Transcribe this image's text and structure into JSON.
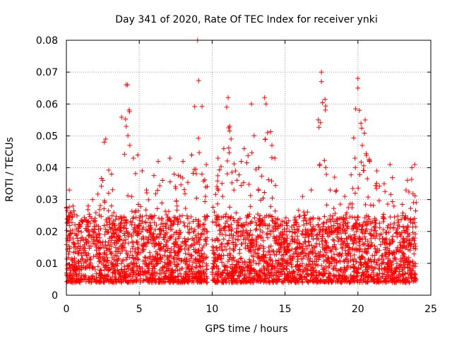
{
  "chart_data": {
    "type": "scatter",
    "title": "Day 341 of 2020, Rate Of TEC Index for receiver ynki",
    "xlabel": "GPS time / hours",
    "ylabel": "ROTI / TECUs",
    "xlim": [
      0,
      25
    ],
    "ylim": [
      0,
      0.08
    ],
    "x_ticks": [
      0,
      5,
      10,
      15,
      20,
      25
    ],
    "x_tick_labels": [
      "0",
      "5",
      "10",
      "15",
      "20",
      "25"
    ],
    "y_ticks": [
      0,
      0.01,
      0.02,
      0.03,
      0.04,
      0.05,
      0.06,
      0.07,
      0.08
    ],
    "y_tick_labels": [
      "0",
      "0.01",
      "0.02",
      "0.03",
      "0.04",
      "0.05",
      "0.06",
      "0.07",
      "0.08"
    ],
    "grid": true,
    "marker": "+",
    "color": "#ff0000",
    "series": [
      {
        "name": "ROTI",
        "points": [
          [
            0.1,
            0.024
          ],
          [
            0.2,
            0.033
          ],
          [
            0.3,
            0.026
          ],
          [
            1.5,
            0.028
          ],
          [
            1.8,
            0.03
          ],
          [
            2.5,
            0.036
          ],
          [
            2.6,
            0.048
          ],
          [
            2.7,
            0.049
          ],
          [
            2.9,
            0.032
          ],
          [
            3.1,
            0.038
          ],
          [
            3.6,
            0.024
          ],
          [
            4.1,
            0.066
          ],
          [
            4.2,
            0.066
          ],
          [
            4.6,
            0.043
          ],
          [
            4.9,
            0.044
          ],
          [
            5.2,
            0.039
          ],
          [
            5.5,
            0.033
          ],
          [
            6.3,
            0.042
          ],
          [
            6.6,
            0.036
          ],
          [
            7.1,
            0.043
          ],
          [
            7.4,
            0.038
          ],
          [
            8.0,
            0.042
          ],
          [
            8.6,
            0.044
          ],
          [
            9.0,
            0.08
          ],
          [
            9.3,
            0.038
          ],
          [
            9.6,
            0.041
          ],
          [
            10.4,
            0.043
          ],
          [
            10.8,
            0.046
          ],
          [
            11.0,
            0.059
          ],
          [
            11.1,
            0.062
          ],
          [
            11.2,
            0.053
          ],
          [
            11.3,
            0.049
          ],
          [
            11.6,
            0.039
          ],
          [
            12.0,
            0.042
          ],
          [
            12.2,
            0.046
          ],
          [
            12.7,
            0.06
          ],
          [
            13.2,
            0.04
          ],
          [
            13.6,
            0.062
          ],
          [
            13.7,
            0.06
          ],
          [
            13.8,
            0.051
          ],
          [
            14.1,
            0.047
          ],
          [
            14.3,
            0.043
          ],
          [
            16.2,
            0.031
          ],
          [
            16.8,
            0.033
          ],
          [
            17.5,
            0.07
          ],
          [
            17.5,
            0.067
          ],
          [
            18.1,
            0.033
          ],
          [
            18.4,
            0.037
          ],
          [
            19.1,
            0.031
          ],
          [
            19.8,
            0.043
          ],
          [
            20.0,
            0.068
          ],
          [
            20.0,
            0.065
          ],
          [
            20.1,
            0.058
          ],
          [
            20.3,
            0.047
          ],
          [
            20.5,
            0.055
          ],
          [
            20.8,
            0.042
          ],
          [
            21.3,
            0.039
          ],
          [
            21.8,
            0.035
          ],
          [
            22.2,
            0.041
          ],
          [
            23.3,
            0.033
          ],
          [
            23.7,
            0.04
          ],
          [
            23.9,
            0.041
          ]
        ],
        "baseline_band": [
          0.004,
          0.025
        ]
      }
    ]
  }
}
